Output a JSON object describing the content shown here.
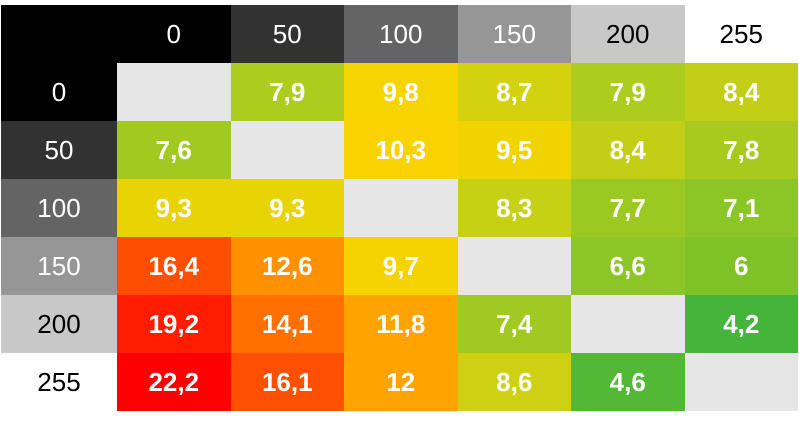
{
  "chart_data": {
    "type": "heatmap",
    "title": "",
    "xlabel": "",
    "ylabel": "",
    "columns": [
      "0",
      "50",
      "100",
      "150",
      "200",
      "255"
    ],
    "rows": [
      "0",
      "50",
      "100",
      "150",
      "200",
      "255"
    ],
    "header_colors": [
      "#000000",
      "#323232",
      "#646464",
      "#969696",
      "#c8c8c8",
      "#ffffff"
    ],
    "header_text_colors": [
      "#ffffff",
      "#ffffff",
      "#ffffff",
      "#ffffff",
      "#000000",
      "#000000"
    ],
    "diagonal_color": "#e6e6e6",
    "values": [
      [
        "",
        "7,9",
        "9,8",
        "8,7",
        "7,9",
        "8,4"
      ],
      [
        "7,6",
        "",
        "10,3",
        "9,5",
        "8,4",
        "7,8"
      ],
      [
        "9,3",
        "9,3",
        "",
        "8,3",
        "7,7",
        "7,1"
      ],
      [
        "16,4",
        "12,6",
        "9,7",
        "",
        "6,6",
        "6"
      ],
      [
        "19,2",
        "14,1",
        "11,8",
        "7,4",
        "",
        "4,2"
      ],
      [
        "22,2",
        "16,1",
        "12",
        "8,6",
        "4,6",
        ""
      ]
    ],
    "cell_colors": [
      [
        "#e6e6e6",
        "#adcc1e",
        "#f5d400",
        "#d4d20e",
        "#adcc1e",
        "#c2cf16"
      ],
      [
        "#a2c920",
        "#e6e6e6",
        "#fad200",
        "#f0d400",
        "#c2cf16",
        "#a8ca1f"
      ],
      [
        "#e8d304",
        "#e8d304",
        "#e6e6e6",
        "#c6d014",
        "#9cc822",
        "#8bc526"
      ],
      [
        "#ff4e00",
        "#ff9100",
        "#f4d300",
        "#e6e6e6",
        "#8cc526",
        "#7ec228"
      ],
      [
        "#ff1c00",
        "#ff7000",
        "#ffa300",
        "#a0c921",
        "#e6e6e6",
        "#44b53a"
      ],
      [
        "#ff0000",
        "#ff4f00",
        "#ffa300",
        "#cdd112",
        "#52b836",
        "#e6e6e6"
      ]
    ]
  }
}
